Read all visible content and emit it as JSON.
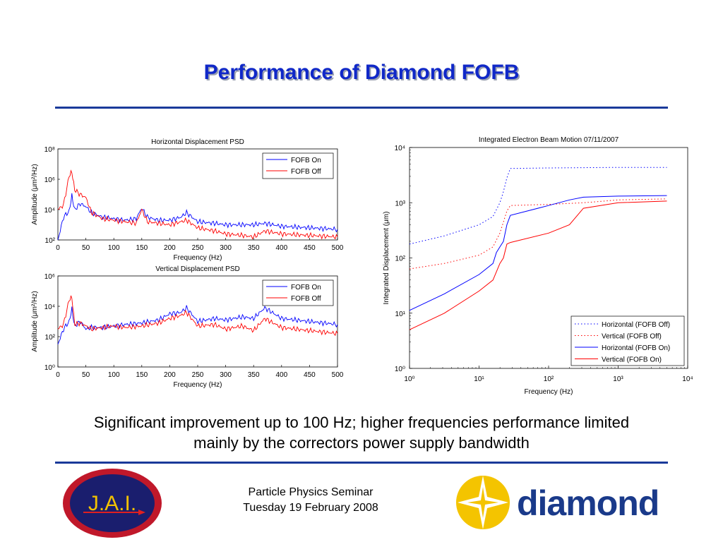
{
  "slide": {
    "title": "Performance of Diamond FOFB",
    "caption_line1": "Significant improvement up to 100 Hz; higher frequencies performance limited",
    "caption_line2": "mainly by the correctors power supply bandwidth",
    "footer_line1": "Particle Physics Seminar",
    "footer_line2": "Tuesday 19 February 2008",
    "logo_left_text": "J.A.I.",
    "logo_right_text": "diamond"
  },
  "colors": {
    "fofb_on": "#0000ff",
    "fofb_off": "#ff0000",
    "title": "#1028c8",
    "rule": "#1a3a9a"
  },
  "chart_data": [
    {
      "type": "line",
      "title": "Horizontal Displacement PSD",
      "xlabel": "Frequency (Hz)",
      "ylabel": "Amplitude (μm²/Hz)",
      "xlim": [
        0,
        500
      ],
      "ylim_log10": [
        2,
        8
      ],
      "yscale": "log",
      "x_ticks": [
        "0",
        "50",
        "100",
        "150",
        "200",
        "250",
        "300",
        "350",
        "400",
        "450",
        "500"
      ],
      "y_ticks": [
        "10²",
        "10⁴",
        "10⁶",
        "10⁸"
      ],
      "legend": "top-right",
      "x": [
        0,
        10,
        20,
        25,
        30,
        40,
        50,
        60,
        80,
        100,
        120,
        140,
        150,
        160,
        180,
        200,
        220,
        230,
        250,
        280,
        300,
        330,
        350,
        370,
        400,
        450,
        500
      ],
      "series": [
        {
          "name": "FOFB On",
          "log10_values": [
            2.0,
            3.5,
            3.9,
            4.9,
            4.0,
            4.4,
            4.2,
            3.8,
            3.5,
            3.4,
            3.3,
            3.4,
            4.1,
            3.5,
            3.3,
            3.3,
            3.5,
            3.8,
            3.2,
            3.1,
            3.0,
            3.0,
            3.0,
            3.1,
            2.9,
            2.8,
            2.7
          ]
        },
        {
          "name": "FOFB Off",
          "log10_values": [
            4.0,
            4.3,
            6.2,
            6.5,
            5.3,
            5.0,
            4.8,
            3.8,
            3.4,
            3.3,
            3.2,
            3.1,
            4.0,
            3.2,
            3.1,
            3.0,
            3.2,
            3.3,
            2.8,
            2.6,
            2.4,
            2.3,
            2.2,
            2.6,
            2.4,
            2.3,
            2.2
          ]
        }
      ]
    },
    {
      "type": "line",
      "title": "Vertical Displacement PSD",
      "xlabel": "Frequency (Hz)",
      "ylabel": "Amplitude (μm²/Hz)",
      "xlim": [
        0,
        500
      ],
      "ylim_log10": [
        0,
        6
      ],
      "yscale": "log",
      "x_ticks": [
        "0",
        "50",
        "100",
        "150",
        "200",
        "250",
        "300",
        "350",
        "400",
        "450",
        "500"
      ],
      "y_ticks": [
        "10⁰",
        "10²",
        "10⁴",
        "10⁶"
      ],
      "legend": "top-right",
      "x": [
        0,
        10,
        20,
        25,
        30,
        40,
        50,
        60,
        80,
        100,
        120,
        150,
        180,
        200,
        220,
        230,
        250,
        280,
        300,
        330,
        350,
        370,
        400,
        450,
        500
      ],
      "series": [
        {
          "name": "FOFB On",
          "log10_values": [
            1.5,
            2.5,
            3.0,
            3.8,
            2.7,
            3.0,
            2.5,
            2.6,
            2.6,
            2.7,
            2.8,
            2.9,
            3.1,
            3.5,
            3.6,
            3.9,
            3.0,
            3.2,
            3.1,
            3.3,
            3.2,
            3.9,
            3.2,
            3.0,
            2.8
          ]
        },
        {
          "name": "FOFB Off",
          "log10_values": [
            2.5,
            2.8,
            4.4,
            4.6,
            2.8,
            2.9,
            2.7,
            2.5,
            2.6,
            2.7,
            2.6,
            2.7,
            2.9,
            3.2,
            3.4,
            3.6,
            2.7,
            2.8,
            2.5,
            2.7,
            2.4,
            3.2,
            2.6,
            2.4,
            2.2
          ]
        }
      ]
    },
    {
      "type": "line",
      "title": "Integrated Electron Beam Motion 07/11/2007",
      "xlabel": "Frequency (Hz)",
      "ylabel": "Integrated Displacement (μm)",
      "xscale": "log",
      "yscale": "log",
      "xlim_log10": [
        0,
        4
      ],
      "ylim_log10": [
        0,
        4
      ],
      "x_ticks": [
        "10⁰",
        "10¹",
        "10²",
        "10³",
        "10⁴"
      ],
      "y_ticks": [
        "10⁰",
        "10¹",
        "10²",
        "10³",
        "10⁴"
      ],
      "legend": "bottom-right",
      "series": [
        {
          "name": "Horizontal (FOFB Off)",
          "style": "dotted",
          "color": "#0000ff",
          "log10_x": [
            0,
            0.5,
            1.0,
            1.2,
            1.3,
            1.35,
            1.4,
            1.45,
            2.0,
            3.0,
            3.7
          ],
          "log10_y": [
            2.25,
            2.4,
            2.6,
            2.75,
            3.0,
            3.2,
            3.45,
            3.62,
            3.63,
            3.64,
            3.64
          ]
        },
        {
          "name": "Vertical (FOFB Off)",
          "style": "dotted",
          "color": "#ff0000",
          "log10_x": [
            0,
            0.5,
            1.0,
            1.2,
            1.3,
            1.35,
            1.4,
            1.45,
            2.0,
            2.5,
            3.0,
            3.7
          ],
          "log10_y": [
            1.8,
            1.9,
            2.05,
            2.2,
            2.45,
            2.65,
            2.85,
            2.95,
            2.97,
            3.0,
            3.05,
            3.07
          ]
        },
        {
          "name": "Horizontal (FOFB On)",
          "style": "solid",
          "color": "#0000ff",
          "log10_x": [
            0,
            0.5,
            1.0,
            1.2,
            1.25,
            1.3,
            1.35,
            1.4,
            1.45,
            2.0,
            2.3,
            2.5,
            3.0,
            3.7
          ],
          "log10_y": [
            1.05,
            1.35,
            1.7,
            1.9,
            2.1,
            2.2,
            2.3,
            2.6,
            2.77,
            2.95,
            3.05,
            3.1,
            3.12,
            3.13
          ]
        },
        {
          "name": "Vertical (FOFB On)",
          "style": "solid",
          "color": "#ff0000",
          "log10_x": [
            0,
            0.5,
            1.0,
            1.2,
            1.3,
            1.35,
            1.4,
            1.45,
            2.0,
            2.3,
            2.5,
            3.0,
            3.7
          ],
          "log10_y": [
            0.7,
            1.0,
            1.4,
            1.6,
            1.9,
            2.0,
            2.25,
            2.28,
            2.45,
            2.6,
            2.9,
            3.0,
            3.03
          ]
        }
      ]
    }
  ]
}
